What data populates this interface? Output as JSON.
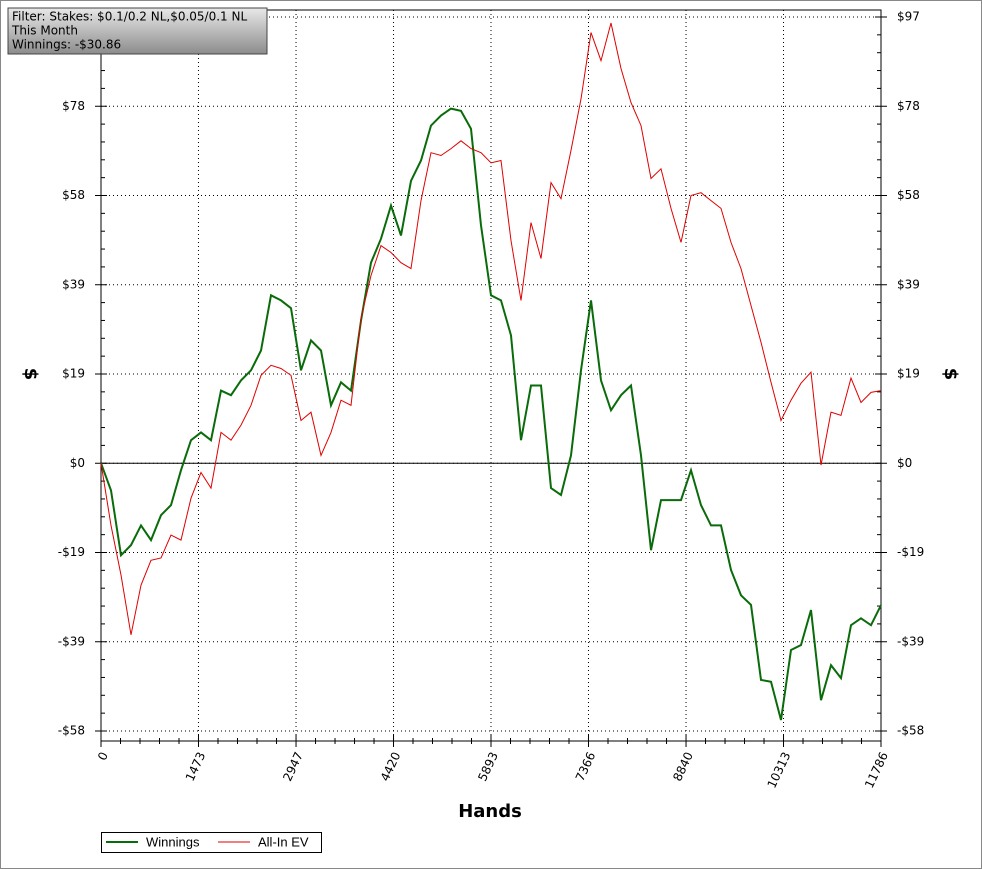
{
  "chart_data": {
    "type": "line",
    "annotations": [
      "Filter: Stakes: $0.1/0.2 NL,$0.05/0.1 NL",
      "This Month",
      "Winnings: -$30.86"
    ],
    "xlabel": "Hands",
    "ylabel": "$",
    "x": [
      0,
      151,
      302,
      453,
      604,
      756,
      907,
      1058,
      1209,
      1360,
      1511,
      1662,
      1813,
      1964,
      2115,
      2267,
      2418,
      2569,
      2720,
      2871,
      3022,
      3173,
      3324,
      3475,
      3626,
      3778,
      3929,
      4080,
      4231,
      4382,
      4533,
      4684,
      4835,
      4986,
      5137,
      5289,
      5440,
      5591,
      5742,
      5893,
      6044,
      6195,
      6346,
      6497,
      6648,
      6800,
      6951,
      7102,
      7253,
      7404,
      7555,
      7706,
      7857,
      8008,
      8159,
      8311,
      8462,
      8613,
      8764,
      8915,
      9066,
      9217,
      9368,
      9519,
      9670,
      9822,
      9973,
      10124,
      10275,
      10426,
      10577,
      10728,
      10879,
      11030,
      11181,
      11333,
      11484,
      11635,
      11786
    ],
    "series": [
      {
        "name": "Winnings",
        "color": "#0a6b0a",
        "values": [
          0,
          -5.9,
          -20.0,
          -17.8,
          -13.5,
          -16.7,
          -11.3,
          -9.1,
          -1.5,
          5.0,
          6.7,
          5.0,
          15.8,
          14.8,
          18.0,
          20.2,
          24.5,
          36.5,
          35.4,
          33.7,
          20.2,
          26.7,
          24.5,
          12.6,
          17.6,
          15.8,
          31.0,
          43.6,
          48.8,
          56.0,
          49.5,
          61.4,
          65.8,
          73.4,
          75.6,
          77.1,
          76.6,
          72.7,
          51.7,
          36.5,
          35.4,
          27.8,
          5.0,
          16.9,
          16.9,
          -5.4,
          -6.9,
          1.7,
          20.2,
          35.4,
          18.0,
          11.5,
          14.8,
          16.9,
          1.7,
          -18.9,
          -8.0,
          -8.0,
          -8.0,
          -1.5,
          -9.1,
          -13.5,
          -13.5,
          -23.2,
          -28.7,
          -30.8,
          -47.1,
          -47.5,
          -55.8,
          -40.6,
          -39.5,
          -31.9,
          -51.5,
          -43.9,
          -46.7,
          -35.2,
          -33.7,
          -35.2,
          -30.86
        ]
      },
      {
        "name": "All-In EV",
        "color": "#e00000",
        "values": [
          0,
          -13.5,
          -24.3,
          -37.3,
          -26.5,
          -21.1,
          -20.6,
          -15.6,
          -16.7,
          -7.6,
          -2.0,
          -5.4,
          6.7,
          5.0,
          8.3,
          12.6,
          19.1,
          21.3,
          20.6,
          19.1,
          9.3,
          11.1,
          1.7,
          6.7,
          13.7,
          12.6,
          31.5,
          40.8,
          47.3,
          45.8,
          43.6,
          42.3,
          57.1,
          67.5,
          66.9,
          68.4,
          70.1,
          68.4,
          67.5,
          65.3,
          65.8,
          48.4,
          35.4,
          52.3,
          44.5,
          61.0,
          57.5,
          68.0,
          79.2,
          93.6,
          87.5,
          95.7,
          85.8,
          78.4,
          73.4,
          61.9,
          64.0,
          55.4,
          48.0,
          58.2,
          58.8,
          57.1,
          55.4,
          48.0,
          42.3,
          34.3,
          26.3,
          17.6,
          9.3,
          13.7,
          17.4,
          19.8,
          -0.4,
          11.1,
          10.4,
          18.5,
          13.2,
          15.4,
          15.8
        ]
      }
    ],
    "xlim": [
      0,
      11786
    ],
    "xticks": [
      0,
      1473,
      2947,
      4420,
      5893,
      7366,
      8840,
      10313,
      11786
    ],
    "ylim": [
      -58.2,
      97
    ],
    "yticks": [
      {
        "value": -58.2,
        "label": "-$58"
      },
      {
        "value": -38.8,
        "label": "-$39"
      },
      {
        "value": -19.4,
        "label": "-$19"
      },
      {
        "value": 0,
        "label": "$0"
      },
      {
        "value": 19.4,
        "label": "$19"
      },
      {
        "value": 38.8,
        "label": "$39"
      },
      {
        "value": 58.2,
        "label": "$58"
      },
      {
        "value": 77.6,
        "label": "$78"
      },
      {
        "value": 97,
        "label": "$97"
      }
    ],
    "grid": true,
    "legend": "bottom-left"
  }
}
